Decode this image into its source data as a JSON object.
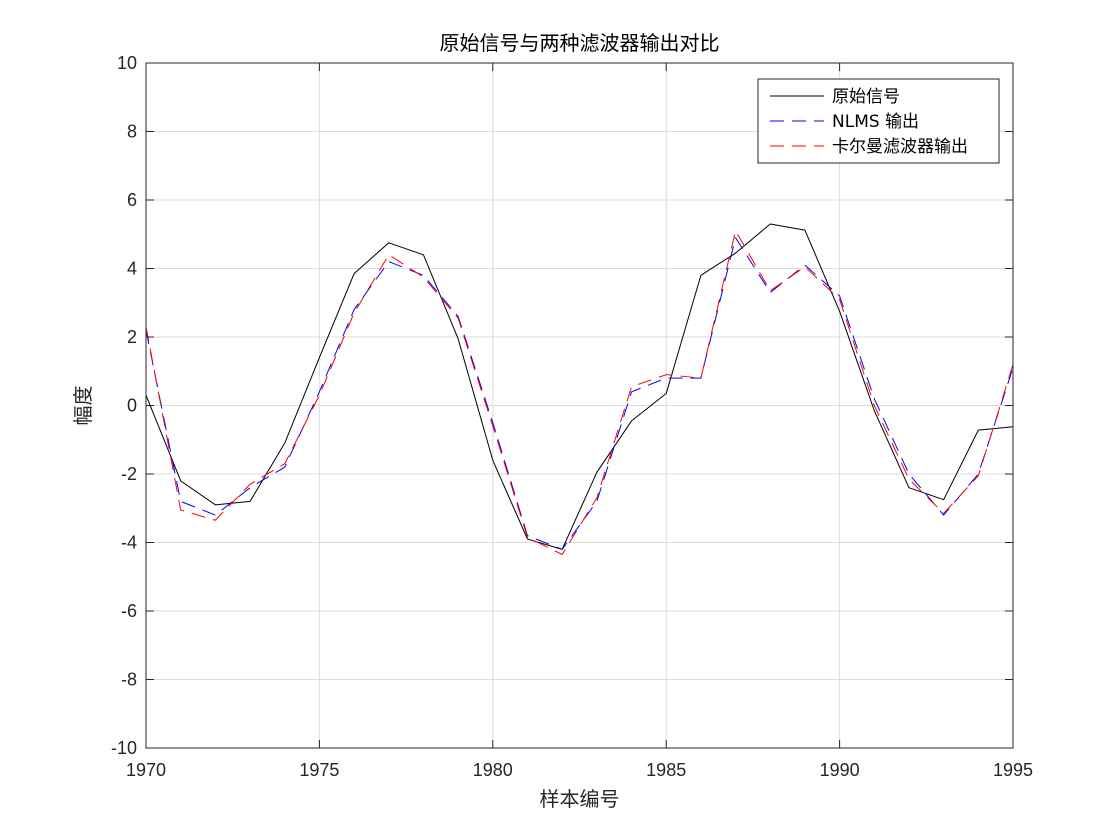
{
  "chart_data": {
    "type": "line",
    "title": "原始信号与两种滤波器输出对比",
    "xlabel": "样本编号",
    "ylabel": "幅度",
    "xlim": [
      1970,
      1995
    ],
    "ylim": [
      -10,
      10
    ],
    "xticks": [
      1970,
      1975,
      1980,
      1985,
      1990,
      1995
    ],
    "yticks": [
      -10,
      -8,
      -6,
      -4,
      -2,
      0,
      2,
      4,
      6,
      8,
      10
    ],
    "grid": true,
    "legend_position": "top-right",
    "x": [
      1970,
      1971,
      1972,
      1973,
      1974,
      1975,
      1976,
      1977,
      1978,
      1979,
      1980,
      1981,
      1982,
      1983,
      1984,
      1985,
      1986,
      1987,
      1988,
      1989,
      1990,
      1991,
      1992,
      1993,
      1994,
      1995
    ],
    "series": [
      {
        "name": "原始信号",
        "color": "#000000",
        "style": "solid",
        "values": [
          0.3,
          -2.2,
          -2.9,
          -2.8,
          -1.1,
          1.4,
          3.85,
          4.75,
          4.4,
          1.95,
          -1.6,
          -3.9,
          -4.2,
          -1.95,
          -0.45,
          0.35,
          3.8,
          4.45,
          5.3,
          5.12,
          2.75,
          -0.15,
          -2.4,
          -2.75,
          -0.72,
          -0.62
        ]
      },
      {
        "name": "NLMS 输出",
        "color": "#0000ff",
        "style": "dashed",
        "values": [
          2.2,
          -2.8,
          -3.2,
          -2.4,
          -1.8,
          0.4,
          2.8,
          4.2,
          3.8,
          2.6,
          -0.5,
          -3.8,
          -4.2,
          -2.8,
          0.4,
          0.8,
          0.8,
          4.9,
          3.3,
          4.1,
          3.2,
          0.2,
          -2.0,
          -3.2,
          -2.0,
          1.1
        ]
      },
      {
        "name": "卡尔曼滤波器输出",
        "color": "#ff0000",
        "style": "dashed",
        "values": [
          2.3,
          -3.05,
          -3.35,
          -2.3,
          -1.7,
          0.3,
          2.7,
          4.4,
          3.75,
          2.55,
          -0.6,
          -3.85,
          -4.35,
          -2.7,
          0.55,
          0.9,
          0.8,
          5.1,
          3.35,
          4.05,
          3.1,
          0.0,
          -2.15,
          -3.15,
          -2.05,
          1.2
        ]
      }
    ]
  }
}
